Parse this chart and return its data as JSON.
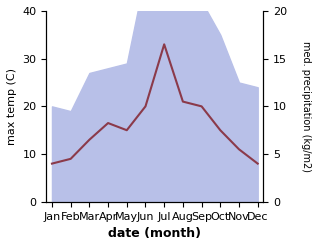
{
  "months": [
    "Jan",
    "Feb",
    "Mar",
    "Apr",
    "May",
    "Jun",
    "Jul",
    "Aug",
    "Sep",
    "Oct",
    "Nov",
    "Dec"
  ],
  "month_x": [
    0,
    1,
    2,
    3,
    4,
    5,
    6,
    7,
    8,
    9,
    10,
    11
  ],
  "temp": [
    8,
    9,
    13,
    16.5,
    15,
    20,
    33,
    21,
    20,
    15,
    11,
    8
  ],
  "precip": [
    10,
    9.5,
    13.5,
    14,
    14.5,
    24,
    20,
    24,
    21,
    17.5,
    12.5,
    12
  ],
  "temp_color": "#8B3A4A",
  "precip_fill_color": "#b8c0e8",
  "ylabel_left": "max temp (C)",
  "ylabel_right": "med. precipitation (kg/m2)",
  "xlabel": "date (month)",
  "ylim_left": [
    0,
    40
  ],
  "ylim_right": [
    0,
    20
  ],
  "bg_color": "#ffffff"
}
